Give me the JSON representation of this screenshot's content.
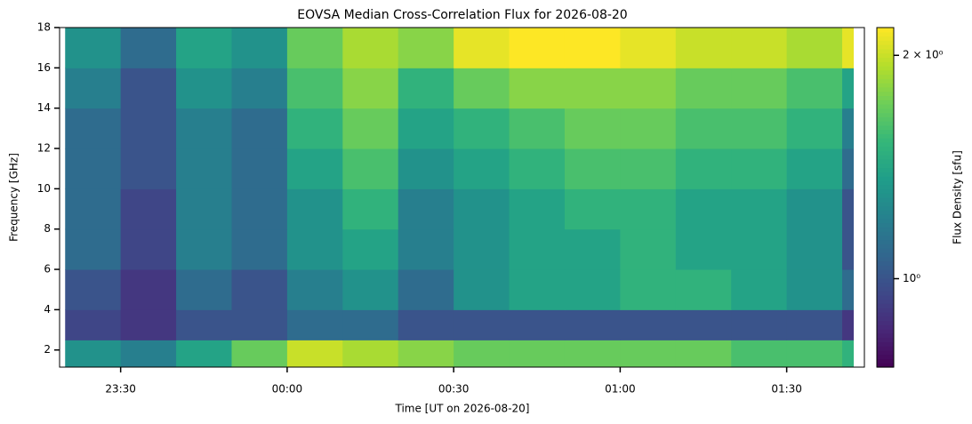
{
  "chart_data": {
    "type": "heatmap",
    "title": "EOVSA Median Cross-Correlation Flux for 2026-08-20",
    "x_label": "Time [UT on 2026-08-20]",
    "y_label": "Frequency [GHz]",
    "colorbar_label": "Flux Density [sfu]",
    "xbins": [
      "23:20",
      "23:30",
      "23:40",
      "23:50",
      "00:00",
      "00:10",
      "00:20",
      "00:30",
      "00:40",
      "00:50",
      "01:00",
      "01:10",
      "01:20",
      "01:30",
      "01:40",
      "01:42"
    ],
    "ybins": [
      1.15,
      2.5,
      4,
      6,
      8,
      10,
      12,
      14,
      16,
      18
    ],
    "values": [
      [
        1.3,
        1.2,
        1.4,
        1.7,
        2.0,
        1.9,
        1.8,
        1.7,
        1.7,
        1.7,
        1.7,
        1.7,
        1.6,
        1.6,
        1.5
      ],
      [
        0.95,
        0.9,
        1.0,
        1.0,
        1.1,
        1.1,
        1.0,
        1.0,
        1.0,
        1.0,
        1.0,
        1.0,
        1.0,
        1.0,
        0.9
      ],
      [
        1.0,
        0.9,
        1.1,
        1.0,
        1.2,
        1.3,
        1.1,
        1.3,
        1.4,
        1.4,
        1.5,
        1.5,
        1.4,
        1.3,
        1.1
      ],
      [
        1.1,
        0.95,
        1.2,
        1.1,
        1.3,
        1.4,
        1.2,
        1.3,
        1.4,
        1.4,
        1.5,
        1.4,
        1.4,
        1.3,
        1.0
      ],
      [
        1.1,
        0.95,
        1.2,
        1.1,
        1.3,
        1.5,
        1.2,
        1.3,
        1.4,
        1.5,
        1.5,
        1.4,
        1.4,
        1.3,
        1.0
      ],
      [
        1.1,
        1.0,
        1.2,
        1.1,
        1.4,
        1.6,
        1.3,
        1.4,
        1.5,
        1.6,
        1.6,
        1.5,
        1.5,
        1.4,
        1.1
      ],
      [
        1.1,
        1.0,
        1.2,
        1.1,
        1.5,
        1.7,
        1.4,
        1.5,
        1.6,
        1.7,
        1.7,
        1.6,
        1.6,
        1.5,
        1.2
      ],
      [
        1.2,
        1.0,
        1.3,
        1.2,
        1.6,
        1.8,
        1.5,
        1.7,
        1.8,
        1.8,
        1.8,
        1.7,
        1.7,
        1.6,
        1.4
      ],
      [
        1.3,
        1.1,
        1.4,
        1.3,
        1.7,
        1.9,
        1.8,
        2.1,
        2.2,
        2.2,
        2.1,
        2.0,
        2.0,
        1.9,
        2.1
      ]
    ],
    "xlim": [
      "23:19",
      "01:44"
    ],
    "xticks": [
      "23:30",
      "00:00",
      "00:30",
      "01:00",
      "01:30"
    ],
    "ylim": [
      1.15,
      18
    ],
    "yticks": [
      2,
      4,
      6,
      8,
      10,
      12,
      14,
      16,
      18
    ],
    "colormap": "viridis",
    "color_log_scale": true,
    "clim": [
      0.76,
      2.18
    ],
    "cticks": [
      {
        "value": 1,
        "label": "10⁰"
      },
      {
        "value": 2,
        "label": "2 × 10⁰"
      }
    ]
  }
}
